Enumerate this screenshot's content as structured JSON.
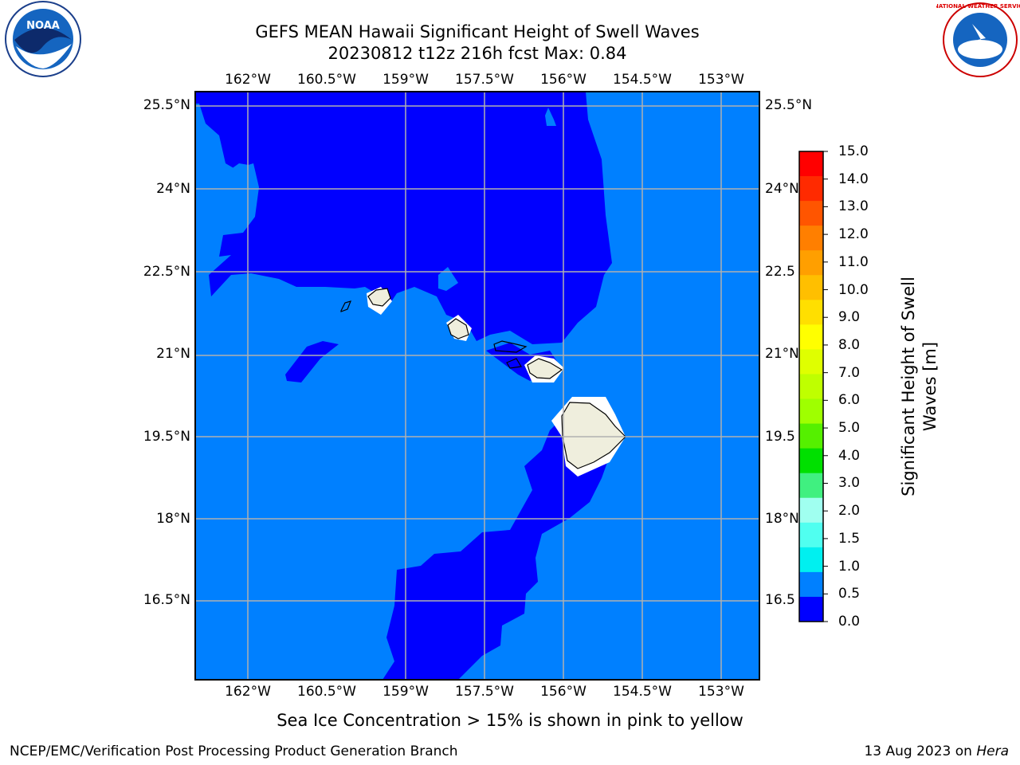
{
  "title": {
    "line1": "GEFS MEAN Hawaii Significant Height of Swell Waves",
    "line2": "20230812 t12z 216h fcst   Max: 0.84"
  },
  "axes": {
    "lon_ticks": [
      "162°W",
      "160.5°W",
      "159°W",
      "157.5°W",
      "156°W",
      "154.5°W",
      "153°W"
    ],
    "lat_ticks": [
      "25.5°N",
      "24°N",
      "22.5°N",
      "21°N",
      "19.5°N",
      "18°N",
      "16.5°N"
    ],
    "lat_ticks_right": [
      "25.5°N",
      "24°N",
      "22.5",
      "21°N",
      "19.5",
      "18°N",
      "16.5"
    ]
  },
  "colorbar": {
    "label_line1": "Significant Height of Swell",
    "label_line2": "Waves [m]",
    "ticks": [
      "15.0",
      "14.0",
      "13.0",
      "12.0",
      "11.0",
      "10.0",
      "9.0",
      "8.0",
      "7.0",
      "6.0",
      "5.0",
      "4.0",
      "3.0",
      "2.0",
      "1.5",
      "1.0",
      "0.5",
      "0.0"
    ],
    "colors_top_to_bottom": [
      "#ff0000",
      "#ff2a00",
      "#ff5500",
      "#ff7f00",
      "#ff9f00",
      "#ffbf00",
      "#ffdf00",
      "#ffff00",
      "#dfff00",
      "#bfff00",
      "#9fff00",
      "#55f000",
      "#00e000",
      "#40f080",
      "#a0fff0",
      "#50fff0",
      "#00f0f0",
      "#0080ff",
      "#0000ff"
    ]
  },
  "map_colors": {
    "deep": "#0000ff",
    "shallow": "#0080ff",
    "land": "#efeedd"
  },
  "note": "Sea Ice Concentration > 15% is shown in pink to yellow",
  "footer": {
    "left": "NCEP/EMC/Verification Post Processing Product Generation Branch",
    "right_prefix": "13 Aug 2023 on ",
    "right_host": "Hera"
  },
  "logos": {
    "left_text": "NOAA",
    "right_text": "NATIONAL WEATHER SERVICE"
  }
}
